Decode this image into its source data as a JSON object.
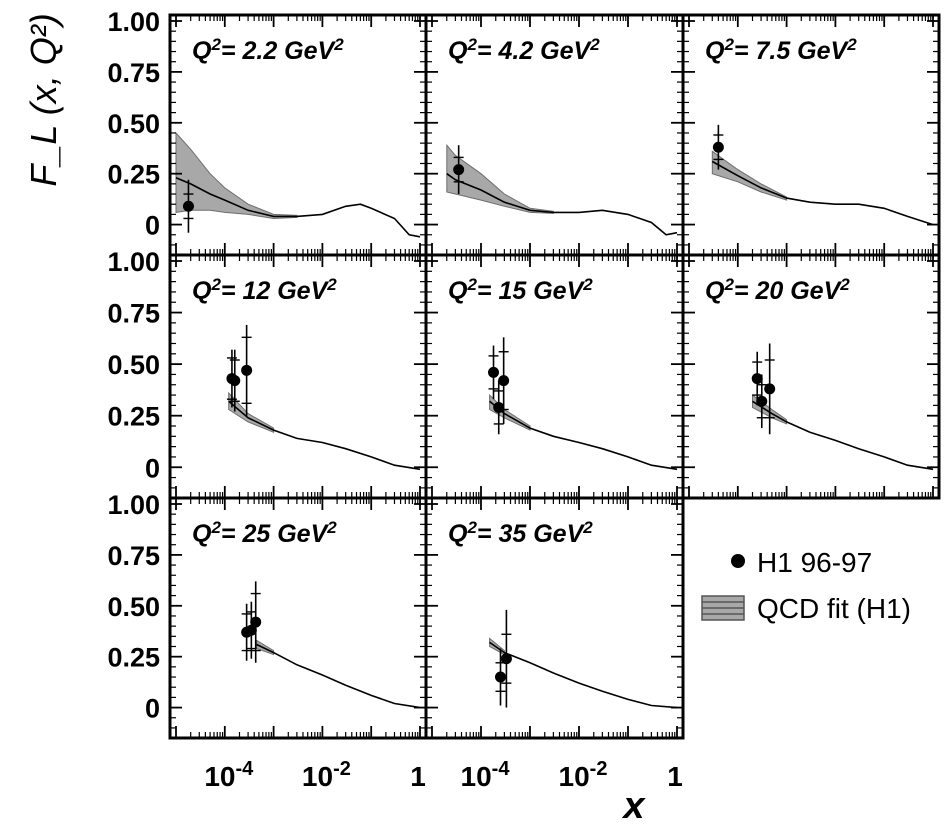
{
  "figure": {
    "y_axis_label": "F_L (x, Q²)",
    "x_axis_label": "x",
    "colors": {
      "frame": "#000000",
      "band_fill": "#a8a8a8",
      "band_stroke": "#6e6e6e",
      "curve": "#000000",
      "point": "#000000"
    }
  },
  "chart_data": {
    "type": "scatter",
    "title": "",
    "xlabel": "x",
    "ylabel": "F_L(x, Q²)",
    "x_scale": "log",
    "xlim": [
      1e-05,
      1
    ],
    "ylim": [
      -0.12,
      1.0
    ],
    "x_ticks": [
      {
        "value": 0.0001,
        "base": "10",
        "exp": "-4"
      },
      {
        "value": 0.01,
        "base": "10",
        "exp": "-2"
      },
      {
        "value": 1,
        "base": "1",
        "exp": ""
      }
    ],
    "y_ticks": [
      {
        "value": 1.0,
        "label": "1.00"
      },
      {
        "value": 0.75,
        "label": "0.75"
      },
      {
        "value": 0.5,
        "label": "0.50"
      },
      {
        "value": 0.25,
        "label": "0.25"
      },
      {
        "value": 0,
        "label": "0"
      }
    ],
    "legend": [
      {
        "name": "H1 96-97",
        "marker": "filled circle"
      },
      {
        "name": "QCD fit (H1)",
        "marker": "hatched band"
      }
    ],
    "legend_position": "bottom-right panel",
    "panels": [
      {
        "label": "Q²= 2.2 GeV²",
        "q2_value": "2.2",
        "unit": "GeV",
        "bandwidth": 0.5,
        "points": [
          {
            "x": 1.8e-05,
            "y": 0.09,
            "err_stat": 0.06,
            "err_tot": 0.13
          }
        ],
        "fit": [
          [
            1e-05,
            0.23
          ],
          [
            2e-05,
            0.2
          ],
          [
            5e-05,
            0.15
          ],
          [
            0.0001,
            0.12
          ],
          [
            0.0003,
            0.07
          ],
          [
            0.001,
            0.04
          ],
          [
            0.003,
            0.04
          ],
          [
            0.01,
            0.05
          ],
          [
            0.03,
            0.09
          ],
          [
            0.06,
            0.1
          ],
          [
            0.1,
            0.08
          ],
          [
            0.3,
            0.03
          ],
          [
            0.6,
            -0.05
          ],
          [
            1,
            -0.06
          ]
        ],
        "band": [
          [
            1e-05,
            0.06,
            0.45
          ],
          [
            2e-05,
            0.07,
            0.37
          ],
          [
            5e-05,
            0.07,
            0.25
          ],
          [
            0.0001,
            0.06,
            0.18
          ],
          [
            0.0003,
            0.05,
            0.1
          ],
          [
            0.001,
            0.03,
            0.05
          ],
          [
            0.003,
            0.035,
            0.045
          ]
        ]
      },
      {
        "label": "Q²= 4.2 GeV²",
        "q2_value": "4.2",
        "unit": "GeV",
        "bandwidth": 0.5,
        "points": [
          {
            "x": 3.5e-05,
            "y": 0.27,
            "err_stat": 0.06,
            "err_tot": 0.12
          }
        ],
        "fit": [
          [
            2e-05,
            0.25
          ],
          [
            3e-05,
            0.22
          ],
          [
            0.0001,
            0.17
          ],
          [
            0.0003,
            0.11
          ],
          [
            0.001,
            0.07
          ],
          [
            0.003,
            0.06
          ],
          [
            0.01,
            0.06
          ],
          [
            0.03,
            0.07
          ],
          [
            0.1,
            0.05
          ],
          [
            0.3,
            0.01
          ],
          [
            0.6,
            -0.05
          ],
          [
            1,
            -0.04
          ]
        ],
        "band": [
          [
            2e-05,
            0.16,
            0.39
          ],
          [
            3e-05,
            0.15,
            0.34
          ],
          [
            0.0001,
            0.12,
            0.25
          ],
          [
            0.0003,
            0.09,
            0.15
          ],
          [
            0.001,
            0.06,
            0.08
          ],
          [
            0.003,
            0.055,
            0.065
          ]
        ]
      },
      {
        "label": "Q²= 7.5 GeV²",
        "q2_value": "7.5",
        "unit": "GeV",
        "bandwidth": 0.5,
        "points": [
          {
            "x": 4e-05,
            "y": 0.38,
            "err_stat": 0.06,
            "err_tot": 0.11
          }
        ],
        "fit": [
          [
            3e-05,
            0.31
          ],
          [
            0.0001,
            0.24
          ],
          [
            0.0003,
            0.18
          ],
          [
            0.001,
            0.13
          ],
          [
            0.003,
            0.11
          ],
          [
            0.01,
            0.1
          ],
          [
            0.03,
            0.1
          ],
          [
            0.1,
            0.08
          ],
          [
            0.3,
            0.04
          ],
          [
            1,
            0.0
          ]
        ],
        "band": [
          [
            3e-05,
            0.25,
            0.36
          ],
          [
            0.0001,
            0.21,
            0.27
          ],
          [
            0.0003,
            0.16,
            0.2
          ],
          [
            0.001,
            0.12,
            0.135
          ]
        ]
      },
      {
        "label": "Q²= 12 GeV²",
        "q2_value": "12",
        "unit": "GeV",
        "bandwidth": 0.6,
        "points": [
          {
            "x": 0.00014,
            "y": 0.43,
            "err_stat": 0.1,
            "err_tot": 0.14
          },
          {
            "x": 0.00016,
            "y": 0.42,
            "err_stat": 0.1,
            "err_tot": 0.15
          },
          {
            "x": 0.00028,
            "y": 0.47,
            "err_stat": 0.16,
            "err_tot": 0.22
          }
        ],
        "fit": [
          [
            0.00012,
            0.32
          ],
          [
            0.0003,
            0.24
          ],
          [
            0.001,
            0.18
          ],
          [
            0.003,
            0.14
          ],
          [
            0.01,
            0.12
          ],
          [
            0.03,
            0.09
          ],
          [
            0.1,
            0.05
          ],
          [
            0.3,
            0.01
          ],
          [
            1,
            -0.01
          ]
        ],
        "band": [
          [
            0.00012,
            0.28,
            0.36
          ],
          [
            0.0003,
            0.22,
            0.26
          ],
          [
            0.001,
            0.17,
            0.19
          ]
        ]
      },
      {
        "label": "Q²= 15 GeV²",
        "q2_value": "15",
        "unit": "GeV",
        "bandwidth": 0.6,
        "points": [
          {
            "x": 0.00018,
            "y": 0.46,
            "err_stat": 0.08,
            "err_tot": 0.13
          },
          {
            "x": 0.00023,
            "y": 0.29,
            "err_stat": 0.08,
            "err_tot": 0.13
          },
          {
            "x": 0.00029,
            "y": 0.42,
            "err_stat": 0.14,
            "err_tot": 0.21
          }
        ],
        "fit": [
          [
            0.00015,
            0.32
          ],
          [
            0.0003,
            0.26
          ],
          [
            0.001,
            0.19
          ],
          [
            0.003,
            0.15
          ],
          [
            0.01,
            0.12
          ],
          [
            0.03,
            0.09
          ],
          [
            0.1,
            0.05
          ],
          [
            0.3,
            0.01
          ],
          [
            1,
            -0.01
          ]
        ],
        "band": [
          [
            0.00015,
            0.28,
            0.35
          ],
          [
            0.0003,
            0.24,
            0.28
          ],
          [
            0.001,
            0.18,
            0.2
          ]
        ]
      },
      {
        "label": "Q²= 20 GeV²",
        "q2_value": "20",
        "unit": "GeV",
        "bandwidth": 0.6,
        "points": [
          {
            "x": 0.00025,
            "y": 0.43,
            "err_stat": 0.08,
            "err_tot": 0.13
          },
          {
            "x": 0.00031,
            "y": 0.32,
            "err_stat": 0.08,
            "err_tot": 0.13
          },
          {
            "x": 0.00045,
            "y": 0.38,
            "err_stat": 0.14,
            "err_tot": 0.22
          }
        ],
        "fit": [
          [
            0.0002,
            0.32
          ],
          [
            0.0005,
            0.26
          ],
          [
            0.001,
            0.22
          ],
          [
            0.003,
            0.17
          ],
          [
            0.01,
            0.13
          ],
          [
            0.03,
            0.09
          ],
          [
            0.1,
            0.05
          ],
          [
            0.3,
            0.01
          ],
          [
            1,
            -0.01
          ]
        ],
        "band": [
          [
            0.0002,
            0.29,
            0.35
          ],
          [
            0.0005,
            0.24,
            0.28
          ],
          [
            0.001,
            0.21,
            0.23
          ]
        ]
      },
      {
        "label": "Q²= 25 GeV²",
        "q2_value": "25",
        "unit": "GeV",
        "bandwidth": 0.6,
        "points": [
          {
            "x": 0.00028,
            "y": 0.37,
            "err_stat": 0.09,
            "err_tot": 0.14
          },
          {
            "x": 0.00035,
            "y": 0.38,
            "err_stat": 0.09,
            "err_tot": 0.14
          },
          {
            "x": 0.00043,
            "y": 0.42,
            "err_stat": 0.14,
            "err_tot": 0.2
          }
        ],
        "fit": [
          [
            0.00045,
            0.31
          ],
          [
            0.001,
            0.27
          ],
          [
            0.003,
            0.21
          ],
          [
            0.01,
            0.16
          ],
          [
            0.03,
            0.11
          ],
          [
            0.1,
            0.06
          ],
          [
            0.3,
            0.02
          ],
          [
            1,
            0.0
          ]
        ],
        "band": [
          [
            0.00045,
            0.29,
            0.33
          ],
          [
            0.001,
            0.26,
            0.28
          ]
        ]
      },
      {
        "label": "Q²= 35 GeV²",
        "q2_value": "35",
        "unit": "GeV",
        "bandwidth": 0.6,
        "points": [
          {
            "x": 0.00025,
            "y": 0.15,
            "err_stat": 0.07,
            "err_tot": 0.14
          },
          {
            "x": 0.00033,
            "y": 0.24,
            "err_stat": 0.12,
            "err_tot": 0.24
          }
        ],
        "fit": [
          [
            0.00015,
            0.32
          ],
          [
            0.0003,
            0.27
          ],
          [
            0.001,
            0.22
          ],
          [
            0.003,
            0.17
          ],
          [
            0.01,
            0.12
          ],
          [
            0.03,
            0.08
          ],
          [
            0.1,
            0.04
          ],
          [
            0.3,
            0.01
          ],
          [
            1,
            0.0
          ]
        ],
        "band": [
          [
            0.00015,
            0.3,
            0.34
          ],
          [
            0.0003,
            0.26,
            0.28
          ]
        ]
      }
    ]
  }
}
